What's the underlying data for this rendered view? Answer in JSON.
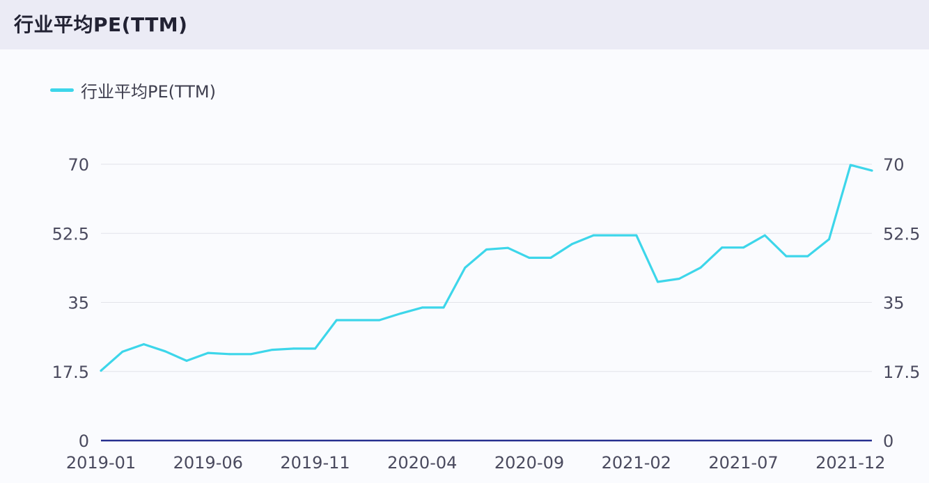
{
  "header": {
    "title": "行业平均PE(TTM)"
  },
  "legend": {
    "items": [
      {
        "label": "行业平均PE(TTM)",
        "color": "#3dd6ea"
      }
    ]
  },
  "colors": {
    "line": "#3dd6ea",
    "axis": "#262f8f",
    "grid": "#e2e3ea",
    "tick_text": "#4a4a5e"
  },
  "chart_data": {
    "type": "line",
    "title": "行业平均PE(TTM)",
    "x_ticks": [
      "2019-01",
      "2019-06",
      "2019-11",
      "2020-04",
      "2020-09",
      "2021-02",
      "2021-07",
      "2021-12"
    ],
    "y_ticks": [
      "0",
      "17.5",
      "35",
      "52.5",
      "70"
    ],
    "ylim": [
      0,
      70
    ],
    "secondary_axis": true,
    "grid": true,
    "legend_position": "top-left",
    "series": [
      {
        "name": "行业平均PE(TTM)",
        "x": [
          "2019-01",
          "2019-02",
          "2019-03",
          "2019-04",
          "2019-05",
          "2019-06",
          "2019-07",
          "2019-08",
          "2019-09",
          "2019-10",
          "2019-11",
          "2019-12",
          "2020-01",
          "2020-02",
          "2020-03",
          "2020-04",
          "2020-05",
          "2020-06",
          "2020-07",
          "2020-08",
          "2020-09",
          "2020-10",
          "2020-11",
          "2020-12",
          "2021-01",
          "2021-02",
          "2021-03",
          "2021-04",
          "2021-05",
          "2021-06",
          "2021-07",
          "2021-08",
          "2021-09",
          "2021-10",
          "2021-11",
          "2021-12",
          "2022-01"
        ],
        "values": [
          17.7,
          22.5,
          24.4,
          22.6,
          20.2,
          22.2,
          21.9,
          21.9,
          23.0,
          23.3,
          23.3,
          30.5,
          30.5,
          30.5,
          32.2,
          33.7,
          33.7,
          43.8,
          48.4,
          48.8,
          46.3,
          46.3,
          49.8,
          52.0,
          52.0,
          52.0,
          40.2,
          41.0,
          43.8,
          48.9,
          48.9,
          52.0,
          46.7,
          46.7,
          51.0,
          69.8,
          68.4
        ]
      }
    ]
  }
}
